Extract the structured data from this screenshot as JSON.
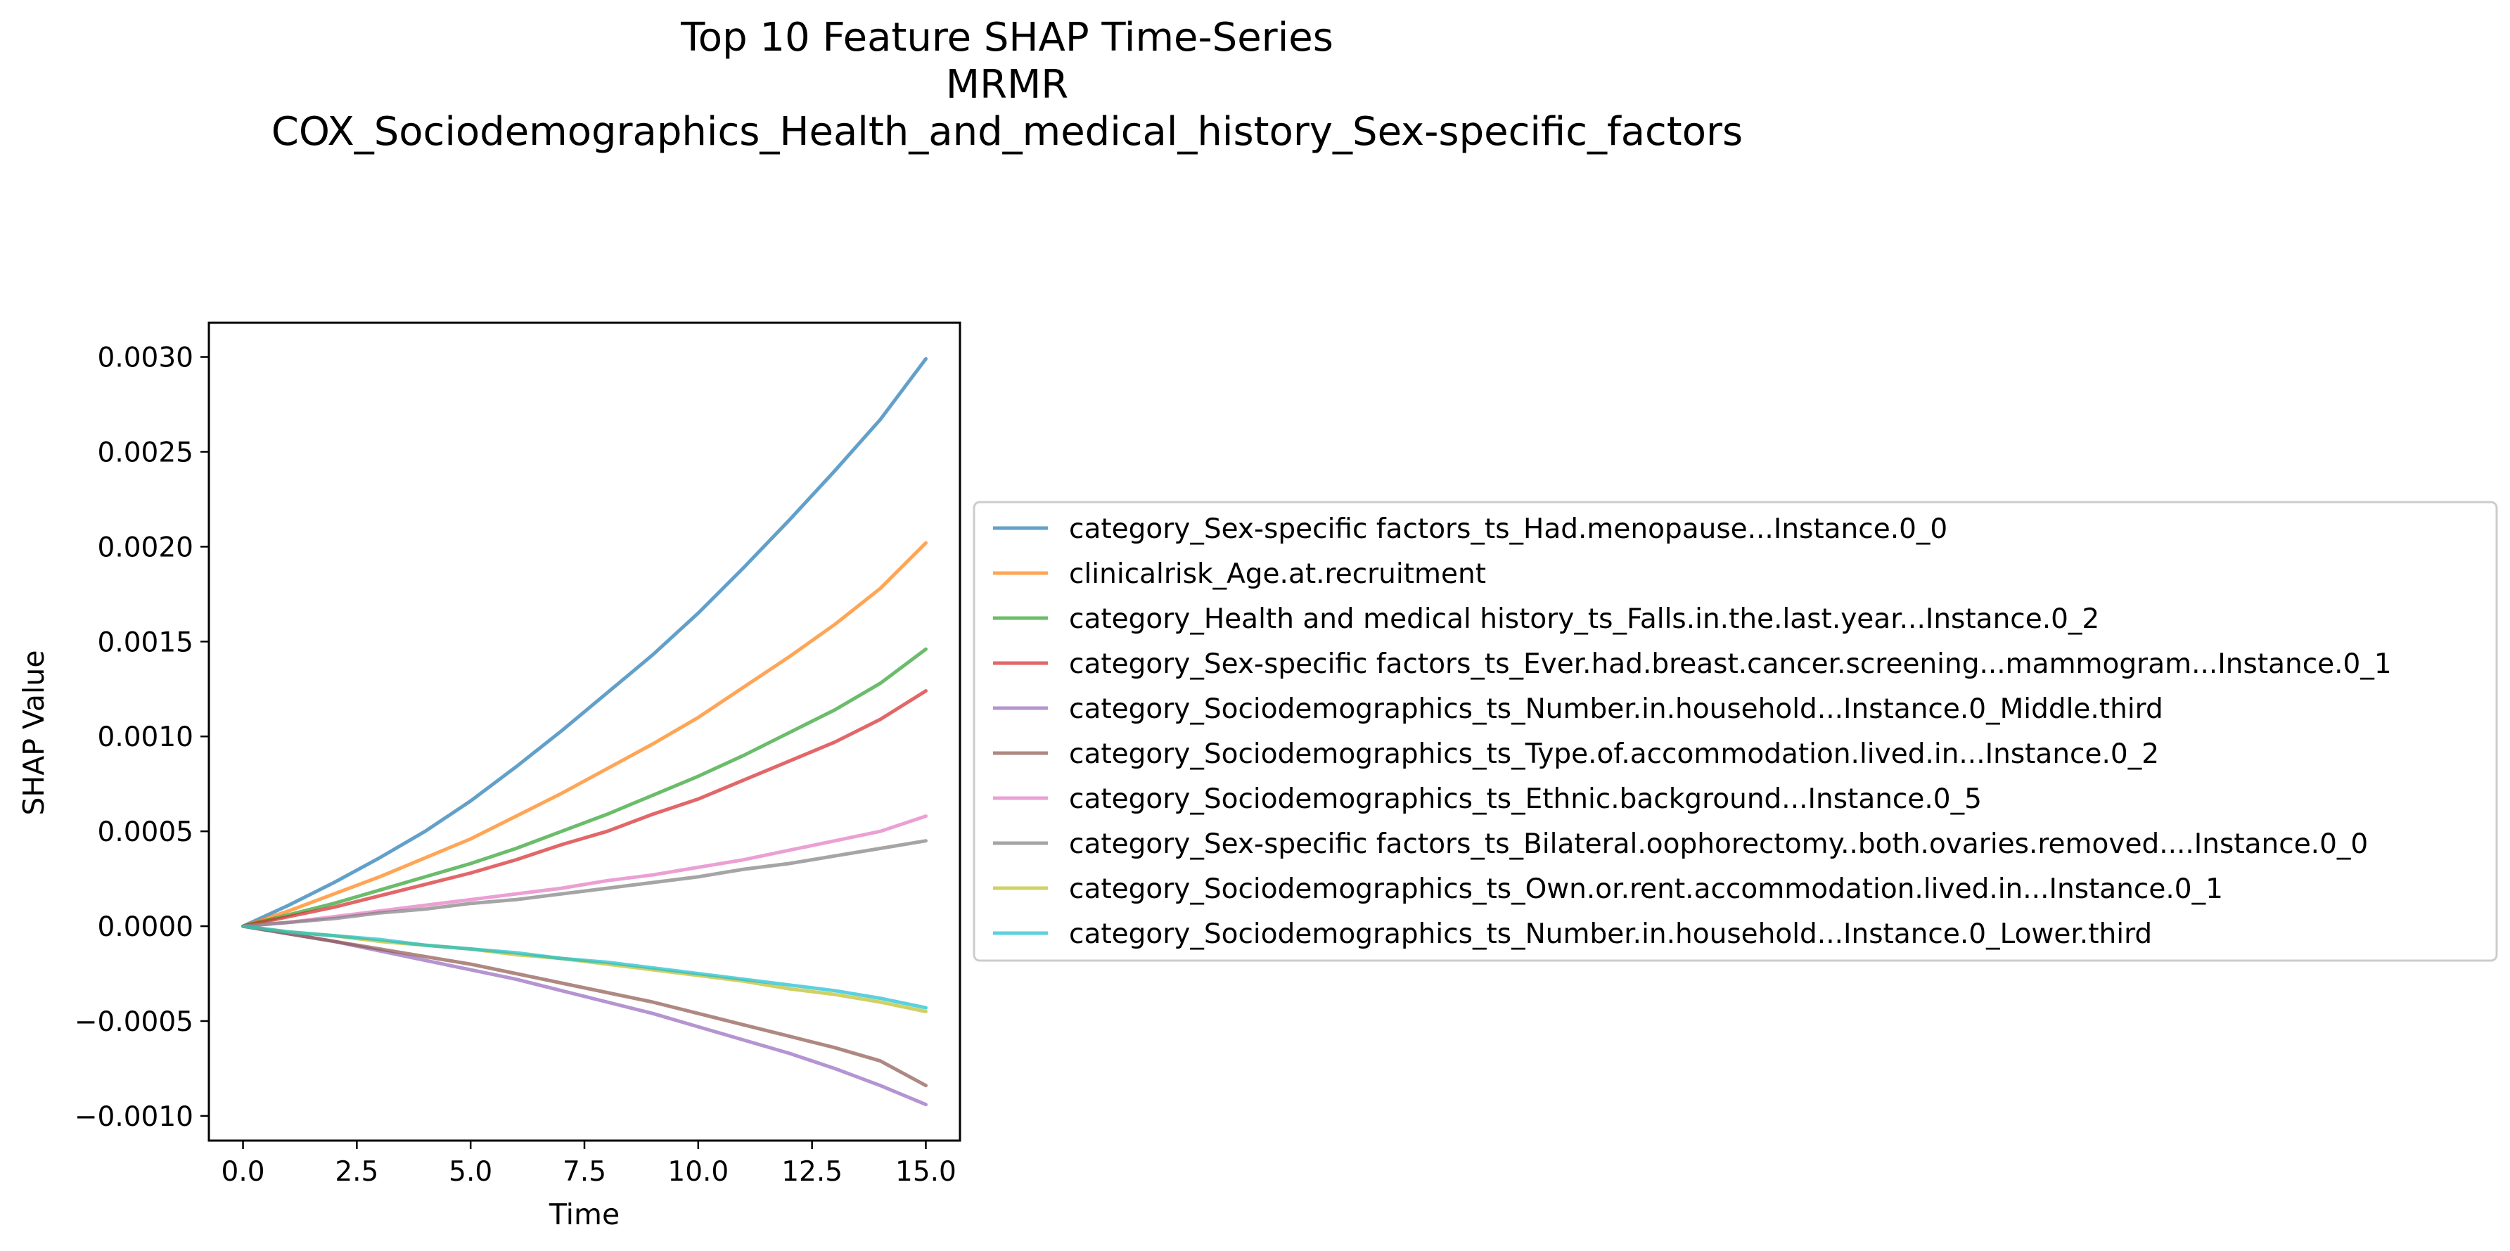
{
  "chart_data": {
    "type": "line",
    "title": [
      "Top 10 Feature SHAP Time-Series",
      "MRMR",
      "COX_Sociodemographics_Health_and_medical_history_Sex-specific_factors"
    ],
    "xlabel": "Time",
    "ylabel": "SHAP Value",
    "xlim": [
      -0.75,
      15.75
    ],
    "ylim": [
      -0.00113,
      0.00318
    ],
    "xticks": [
      0.0,
      2.5,
      5.0,
      7.5,
      10.0,
      12.5,
      15.0
    ],
    "xtick_labels": [
      "0.0",
      "2.5",
      "5.0",
      "7.5",
      "10.0",
      "12.5",
      "15.0"
    ],
    "yticks": [
      0.003,
      0.0025,
      0.002,
      0.0015,
      0.001,
      0.0005,
      0.0,
      -0.0005,
      -0.001
    ],
    "ytick_labels": [
      "0.0030",
      "0.0025",
      "0.0020",
      "0.0015",
      "0.0010",
      "0.0005",
      "0.0000",
      "−0.0005",
      "−0.0010"
    ],
    "grid": false,
    "legend_position": "right-outside",
    "x": [
      0,
      1,
      2,
      3,
      4,
      5,
      6,
      7,
      8,
      9,
      10,
      11,
      12,
      13,
      14,
      15
    ],
    "series": [
      {
        "name": "category_Sex-specific factors_ts_Had.menopause...Instance.0_0",
        "color": "#1f77b4",
        "values": [
          0.0,
          0.00011,
          0.00023,
          0.00036,
          0.0005,
          0.00066,
          0.00084,
          0.00103,
          0.00123,
          0.00143,
          0.00165,
          0.00189,
          0.00214,
          0.0024,
          0.00267,
          0.00299
        ]
      },
      {
        "name": "clinicalrisk_Age.at.recruitment",
        "color": "#ff7f0e",
        "values": [
          0.0,
          8e-05,
          0.00017,
          0.00026,
          0.00036,
          0.00046,
          0.00058,
          0.0007,
          0.00083,
          0.00096,
          0.0011,
          0.00126,
          0.00142,
          0.00159,
          0.00178,
          0.00202
        ]
      },
      {
        "name": "category_Health and medical history_ts_Falls.in.the.last.year...Instance.0_2",
        "color": "#2ca02c",
        "values": [
          0.0,
          6e-05,
          0.00012,
          0.00019,
          0.00026,
          0.00033,
          0.00041,
          0.0005,
          0.00059,
          0.00069,
          0.00079,
          0.0009,
          0.00102,
          0.00114,
          0.00128,
          0.00146
        ]
      },
      {
        "name": "category_Sex-specific factors_ts_Ever.had.breast.cancer.screening...mammogram...Instance.0_1",
        "color": "#d62728",
        "values": [
          0.0,
          5e-05,
          0.0001,
          0.00016,
          0.00022,
          0.00028,
          0.00035,
          0.00043,
          0.0005,
          0.00059,
          0.00067,
          0.00077,
          0.00087,
          0.00097,
          0.00109,
          0.00124
        ]
      },
      {
        "name": "category_Sociodemographics_ts_Number.in.household...Instance.0_Middle.third",
        "color": "#9467bd",
        "values": [
          0.0,
          -4e-05,
          -8e-05,
          -0.00013,
          -0.00018,
          -0.00023,
          -0.00028,
          -0.00034,
          -0.0004,
          -0.00046,
          -0.00053,
          -0.0006,
          -0.00067,
          -0.00075,
          -0.00084,
          -0.00094
        ]
      },
      {
        "name": "category_Sociodemographics_ts_Type.of.accommodation.lived.in...Instance.0_2",
        "color": "#8c564b",
        "values": [
          0.0,
          -4e-05,
          -8e-05,
          -0.00012,
          -0.00016,
          -0.0002,
          -0.00025,
          -0.0003,
          -0.00035,
          -0.0004,
          -0.00046,
          -0.00052,
          -0.00058,
          -0.00064,
          -0.00071,
          -0.00084
        ]
      },
      {
        "name": "category_Sociodemographics_ts_Ethnic.background...Instance.0_5",
        "color": "#e377c2",
        "values": [
          0.0,
          2e-05,
          5e-05,
          8e-05,
          0.00011,
          0.00014,
          0.00017,
          0.0002,
          0.00024,
          0.00027,
          0.00031,
          0.00035,
          0.0004,
          0.00045,
          0.0005,
          0.00058
        ]
      },
      {
        "name": "category_Sex-specific factors_ts_Bilateral.oophorectomy..both.ovaries.removed....Instance.0_0",
        "color": "#7f7f7f",
        "values": [
          0.0,
          2e-05,
          4e-05,
          7e-05,
          9e-05,
          0.00012,
          0.00014,
          0.00017,
          0.0002,
          0.00023,
          0.00026,
          0.0003,
          0.00033,
          0.00037,
          0.00041,
          0.00045
        ]
      },
      {
        "name": "category_Sociodemographics_ts_Own.or.rent.accommodation.lived.in...Instance.0_1",
        "color": "#bcbd22",
        "values": [
          0.0,
          -3e-05,
          -5e-05,
          -8e-05,
          -0.0001,
          -0.00012,
          -0.00015,
          -0.00017,
          -0.0002,
          -0.00023,
          -0.00026,
          -0.00029,
          -0.00033,
          -0.00036,
          -0.0004,
          -0.00045
        ]
      },
      {
        "name": "category_Sociodemographics_ts_Number.in.household...Instance.0_Lower.third",
        "color": "#17becf",
        "values": [
          0.0,
          -3e-05,
          -5e-05,
          -7e-05,
          -0.0001,
          -0.00012,
          -0.00014,
          -0.00017,
          -0.00019,
          -0.00022,
          -0.00025,
          -0.00028,
          -0.00031,
          -0.00034,
          -0.00038,
          -0.00043
        ]
      }
    ]
  }
}
